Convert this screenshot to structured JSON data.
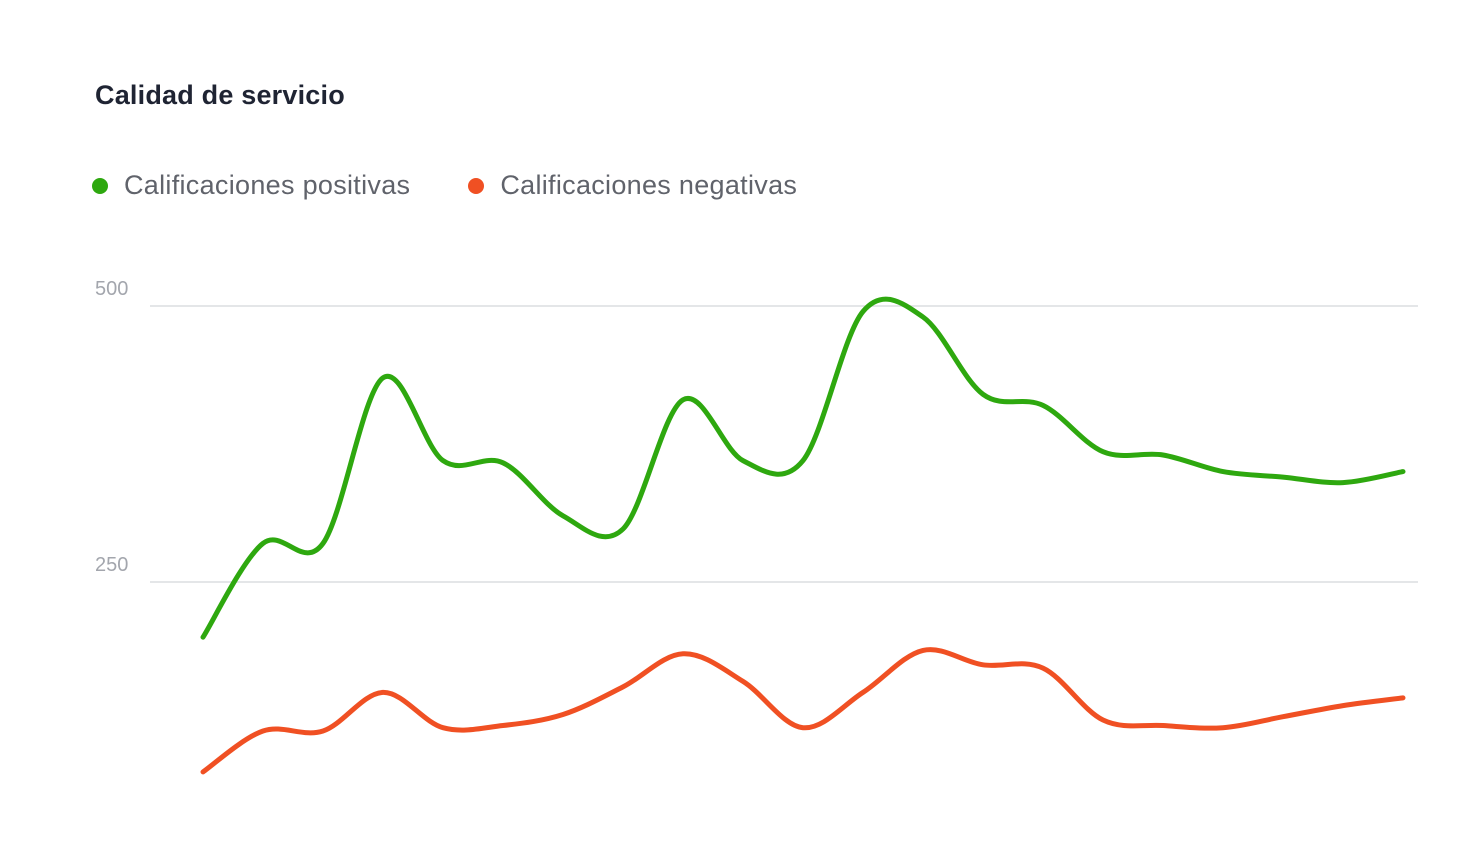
{
  "title": "Calidad de servicio",
  "legend": {
    "positive_label": "Calificaciones positivas",
    "negative_label": "Calificaciones negativas"
  },
  "colors": {
    "positive": "#2ea80f",
    "negative": "#f05023",
    "gridline": "#dcdde0",
    "tick_text": "#a3a6ad",
    "title_text": "#1f2433",
    "legend_text": "#60636b"
  },
  "chart_data": {
    "type": "line",
    "title": "Calidad de servicio",
    "xlabel": "",
    "ylabel": "",
    "x": [
      1,
      2,
      3,
      4,
      5,
      6,
      7,
      8,
      9,
      10,
      11,
      12,
      13,
      14,
      15,
      16,
      17,
      18,
      19,
      20,
      21
    ],
    "yticks": [
      250,
      500
    ],
    "ylim": [
      50,
      500
    ],
    "grid": true,
    "legend_position": "top-left",
    "series": [
      {
        "name": "Calificaciones positivas",
        "color": "#2ea80f",
        "values": [
          200,
          285,
          285,
          435,
          360,
          358,
          310,
          298,
          415,
          360,
          360,
          495,
          490,
          420,
          410,
          368,
          365,
          350,
          345,
          340,
          350
        ]
      },
      {
        "name": "Calificaciones negativas",
        "color": "#f05023",
        "values": [
          78,
          115,
          115,
          150,
          118,
          120,
          130,
          155,
          185,
          160,
          118,
          150,
          188,
          175,
          172,
          125,
          120,
          118,
          128,
          138,
          145
        ]
      }
    ]
  }
}
